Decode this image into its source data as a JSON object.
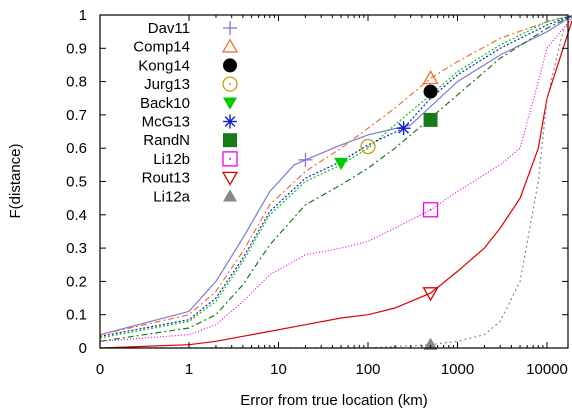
{
  "chart_data": {
    "type": "line",
    "title": "",
    "xlabel": "Error from true location (km)",
    "ylabel": "F(distance)",
    "x_scale": "log (tick at 0 marks the zero-error origin)",
    "x_ticks": [
      "0",
      "1",
      "10",
      "100",
      "1000",
      "10000"
    ],
    "y_ticks": [
      "0",
      "0.1",
      "0.2",
      "0.3",
      "0.4",
      "0.5",
      "0.6",
      "0.7",
      "0.8",
      "0.9",
      "1"
    ],
    "ylim": [
      0,
      1
    ],
    "grid": false,
    "legend_position": "top-left",
    "series": [
      {
        "name": "Dav11",
        "color": "#7b7bd6",
        "dash": "",
        "marker": "plus",
        "x": [
          0,
          1,
          2,
          4,
          8,
          15,
          20,
          50,
          100,
          300,
          1000,
          3000,
          10000,
          20000
        ],
        "y": [
          0.04,
          0.11,
          0.2,
          0.33,
          0.47,
          0.55,
          0.565,
          0.61,
          0.64,
          0.67,
          0.8,
          0.88,
          0.95,
          1.0
        ],
        "marker_at": [
          20,
          0.565
        ]
      },
      {
        "name": "Comp14",
        "color": "#f07030",
        "dash": "6,3,2,3",
        "marker": "triangle-open",
        "x": [
          0,
          1,
          2,
          4,
          8,
          20,
          50,
          100,
          200,
          500,
          1000,
          3000,
          10000,
          20000
        ],
        "y": [
          0.04,
          0.1,
          0.17,
          0.29,
          0.43,
          0.53,
          0.6,
          0.66,
          0.72,
          0.81,
          0.86,
          0.93,
          0.98,
          1.0
        ],
        "marker_at": [
          500,
          0.81
        ]
      },
      {
        "name": "Kong14",
        "color": "#000000",
        "dash": "",
        "marker": "circle-filled",
        "x": [
          0,
          500
        ],
        "y": [
          0,
          0.77
        ],
        "marker_only": true,
        "marker_at": [
          500,
          0.77
        ]
      },
      {
        "name": "Jurg13",
        "color": "#c8a000",
        "dash": "",
        "marker": "circle-open",
        "x": [
          0,
          100
        ],
        "y": [
          0,
          0.605
        ],
        "marker_only": true,
        "marker_at": [
          100,
          0.605
        ]
      },
      {
        "name": "Back10",
        "color": "#00cc00",
        "dash": "2,2",
        "marker": "triangle-down-filled",
        "x": [
          0,
          1,
          2,
          4,
          8,
          20,
          50,
          100,
          200,
          500,
          1000,
          3000,
          10000,
          20000
        ],
        "y": [
          0.03,
          0.08,
          0.14,
          0.26,
          0.4,
          0.5,
          0.55,
          0.6,
          0.67,
          0.76,
          0.83,
          0.91,
          0.98,
          1.0
        ],
        "marker_at": [
          50,
          0.555
        ]
      },
      {
        "name": "McG13",
        "color": "#1020d0",
        "dash": "2,2",
        "marker": "asterisk",
        "x": [
          0,
          1,
          2,
          4,
          8,
          20,
          50,
          100,
          250,
          500,
          1000,
          3000,
          10000,
          20000
        ],
        "y": [
          0.035,
          0.085,
          0.15,
          0.27,
          0.41,
          0.51,
          0.56,
          0.61,
          0.66,
          0.75,
          0.82,
          0.9,
          0.97,
          1.0
        ],
        "marker_at": [
          250,
          0.66
        ]
      },
      {
        "name": "RandN",
        "color": "#1a7a1a",
        "dash": "6,3,2,3",
        "marker": "square-filled",
        "x": [
          0,
          1,
          2,
          4,
          8,
          20,
          50,
          100,
          200,
          500,
          1000,
          3000,
          10000,
          20000
        ],
        "y": [
          0.02,
          0.06,
          0.1,
          0.19,
          0.31,
          0.43,
          0.49,
          0.54,
          0.6,
          0.69,
          0.76,
          0.87,
          0.96,
          1.0
        ],
        "marker_at": [
          500,
          0.685
        ]
      },
      {
        "name": "Li12b",
        "color": "#ee00ee",
        "dash": "1,2",
        "marker": "square-dot-open",
        "x": [
          0,
          1,
          2,
          4,
          8,
          20,
          50,
          100,
          200,
          500,
          1000,
          3000,
          5000,
          8000,
          10000,
          20000
        ],
        "y": [
          0.02,
          0.04,
          0.07,
          0.14,
          0.22,
          0.28,
          0.3,
          0.32,
          0.36,
          0.415,
          0.47,
          0.55,
          0.6,
          0.8,
          0.9,
          1.0
        ],
        "marker_at": [
          500,
          0.415
        ]
      },
      {
        "name": "Rout13",
        "color": "#dd0000",
        "dash": "",
        "marker": "triangle-down-open",
        "x": [
          0,
          1,
          2,
          4,
          8,
          20,
          50,
          100,
          200,
          500,
          1000,
          2000,
          3000,
          5000,
          8000,
          10000,
          20000
        ],
        "y": [
          0.0,
          0.01,
          0.02,
          0.035,
          0.05,
          0.07,
          0.09,
          0.1,
          0.12,
          0.165,
          0.23,
          0.3,
          0.36,
          0.45,
          0.6,
          0.75,
          1.0
        ],
        "marker_at": [
          500,
          0.165
        ]
      },
      {
        "name": "Li12a",
        "color": "#888888",
        "dash": "2,3",
        "marker": "triangle-filled",
        "x": [
          0,
          100,
          500,
          1000,
          2000,
          3000,
          5000,
          8000,
          10000,
          15000,
          20000
        ],
        "y": [
          0.0,
          0.0,
          0.01,
          0.02,
          0.04,
          0.08,
          0.2,
          0.5,
          0.75,
          0.95,
          1.0
        ],
        "marker_at": [
          500,
          0.01
        ]
      }
    ]
  }
}
